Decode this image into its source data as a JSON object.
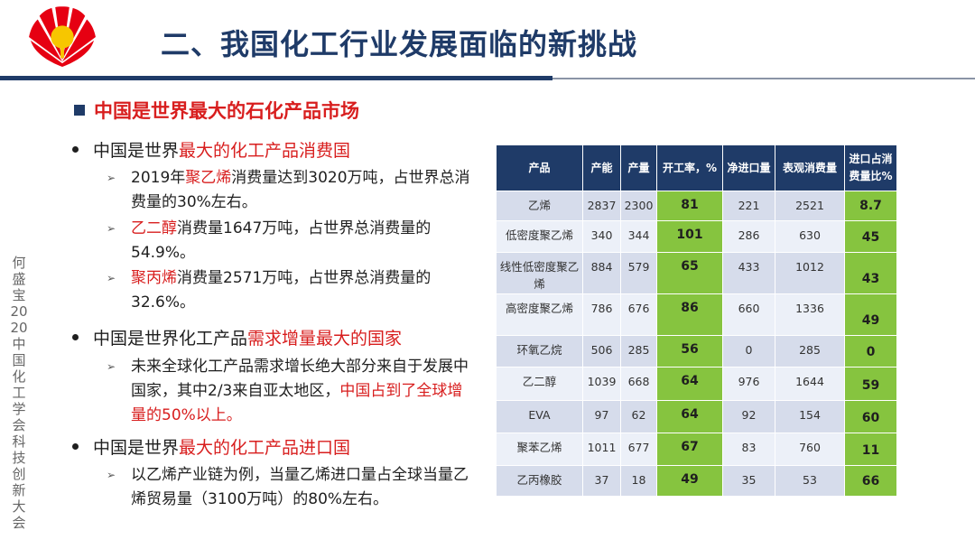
{
  "title": "二、我国化工行业发展面临的新挑战",
  "section_heading": "中国是世界最大的石化产品市场",
  "side_note": "何盛宝 2020中国化工学会科技创新大会",
  "bullets": [
    {
      "pre": "中国是世界",
      "hl": "最大的化工产品消费国",
      "post": ""
    },
    {
      "pre": "中国是世界化工产品",
      "hl": "需求增量最大的国家",
      "post": ""
    },
    {
      "pre": "中国是世界",
      "hl": "最大的化工产品进口国",
      "post": ""
    }
  ],
  "subs": [
    {
      "pre": " 2019年",
      "hl": "聚乙烯",
      "post": "消费量达到3020万吨，占世界总消费量的30%左右。"
    },
    {
      "pre": "",
      "hl": "乙二醇",
      "post": "消费量1647万吨，占世界总消费量的54.9%。"
    },
    {
      "pre": "",
      "hl": "聚丙烯",
      "post": "消费量2571万吨，占世界总消费量的32.6%。"
    },
    {
      "pre": "未来全球化工产品需求增长绝大部分来自于发展中国家，其中2/3来自亚太地区，",
      "hl": "中国占到了全球增量的50%以上。",
      "post": ""
    },
    {
      "pre": "以乙烯产业链为例，当量乙烯进口量占全球当量乙烯贸易量（3100万吨）的80%左右。",
      "hl": "",
      "post": ""
    }
  ],
  "table": {
    "headers": [
      "产品",
      "产能",
      "产量",
      "开工率，%",
      "净进口量",
      "表观消费量",
      "进口占消费量比%"
    ],
    "rows": [
      [
        "乙烯",
        "2837",
        "2300",
        "81",
        "221",
        "2521",
        "8.7"
      ],
      [
        "低密度聚乙烯",
        "340",
        "344",
        "101",
        "286",
        "630",
        "45"
      ],
      [
        "线性低密度聚乙烯",
        "884",
        "579",
        "65",
        "433",
        "1012",
        "43"
      ],
      [
        "高密度聚乙烯",
        "786",
        "676",
        "86",
        "660",
        "1336",
        "49"
      ],
      [
        "环氧乙烷",
        "506",
        "285",
        "56",
        "0",
        "285",
        "0"
      ],
      [
        "乙二醇",
        "1039",
        "668",
        "64",
        "976",
        "1644",
        "59"
      ],
      [
        "EVA",
        "97",
        "62",
        "64",
        "92",
        "154",
        "60"
      ],
      [
        "聚苯乙烯",
        "1011",
        "677",
        "67",
        "83",
        "760",
        "11"
      ],
      [
        "乙丙橡胶",
        "37",
        "18",
        "49",
        "35",
        "53",
        "66"
      ]
    ]
  },
  "colors": {
    "navy": "#1f3b68",
    "red": "#d81e1e",
    "green": "#86c43f",
    "logo_red": "#e60012",
    "logo_yellow": "#f7c600"
  }
}
